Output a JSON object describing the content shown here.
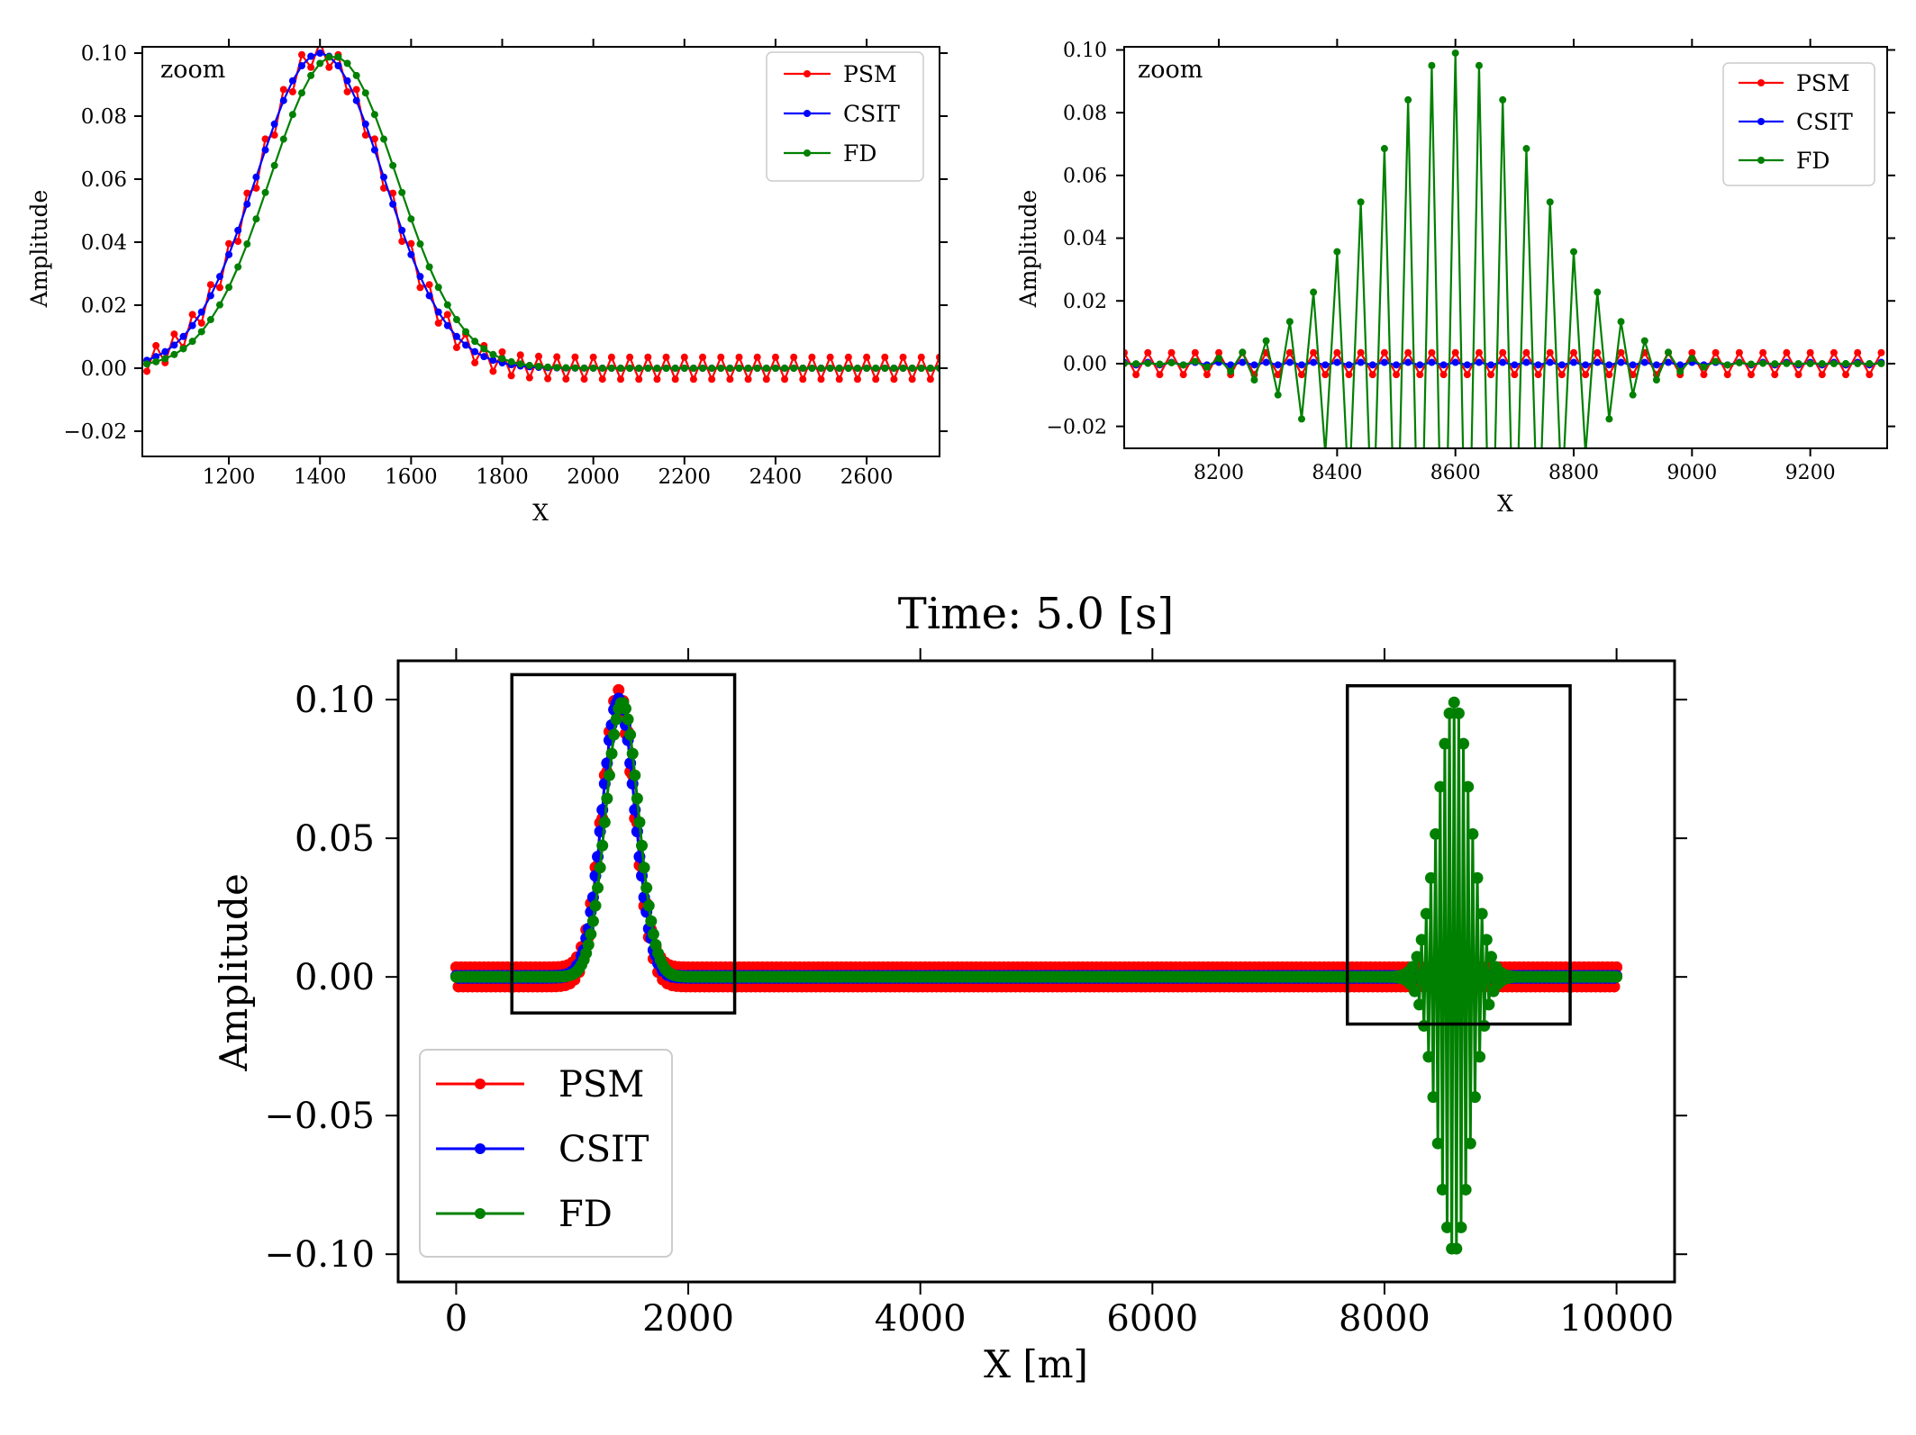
{
  "figure": {
    "series_names": [
      "PSM",
      "CSIT",
      "FD"
    ],
    "colors": {
      "PSM": "#ff0000",
      "CSIT": "#0000ff",
      "FD": "#008000",
      "axis": "#000000"
    }
  },
  "chart_data": [
    {
      "id": "zoom-left",
      "type": "line",
      "annotation": "zoom",
      "xlabel": "X",
      "ylabel": "Amplitude",
      "xlim": [
        1010,
        2760
      ],
      "ylim": [
        -0.028,
        0.102
      ],
      "xticks": [
        1200,
        1400,
        1600,
        1800,
        2000,
        2200,
        2400,
        2600
      ],
      "yticks": [
        -0.02,
        0.0,
        0.02,
        0.04,
        0.06,
        0.08,
        0.1
      ],
      "ytick_labels": [
        "−0.02",
        "0.00",
        "0.02",
        "0.04",
        "0.06",
        "0.08",
        "0.10"
      ],
      "legend": [
        "PSM",
        "CSIT",
        "FD"
      ],
      "series": [
        {
          "name": "PSM",
          "model": "gaussian",
          "center": 1400,
          "sigma": 140,
          "amplitude": 0.1,
          "oscillation": 0.0035,
          "step": 20
        },
        {
          "name": "CSIT",
          "model": "gaussian",
          "center": 1400,
          "sigma": 140,
          "amplitude": 0.1,
          "oscillation": 0.0,
          "step": 20
        },
        {
          "name": "FD",
          "model": "gaussian",
          "center": 1430,
          "sigma": 140,
          "amplitude": 0.099,
          "oscillation": 0.0,
          "step": 20
        }
      ]
    },
    {
      "id": "zoom-right",
      "type": "line",
      "annotation": "zoom",
      "xlabel": "X",
      "ylabel": "Amplitude",
      "xlim": [
        8040,
        9330
      ],
      "ylim": [
        -0.027,
        0.101
      ],
      "xticks": [
        8200,
        8400,
        8600,
        8800,
        9000,
        9200
      ],
      "yticks": [
        -0.02,
        0.0,
        0.02,
        0.04,
        0.06,
        0.08,
        0.1
      ],
      "ytick_labels": [
        "−0.02",
        "0.00",
        "0.02",
        "0.04",
        "0.06",
        "0.08",
        "0.10"
      ],
      "legend": [
        "PSM",
        "CSIT",
        "FD"
      ],
      "series": [
        {
          "name": "PSM",
          "model": "flat",
          "oscillation": 0.0035,
          "step": 20
        },
        {
          "name": "CSIT",
          "model": "flat",
          "oscillation": 0.0004,
          "step": 20
        },
        {
          "name": "FD",
          "model": "alternating-gaussian",
          "center": 8600,
          "sigma": 140,
          "amplitude": 0.099,
          "step": 20
        }
      ]
    },
    {
      "id": "main",
      "type": "line",
      "title": "Time: 5.0 [s]",
      "xlabel": "X [m]",
      "ylabel": "Amplitude",
      "xlim": [
        -500,
        10500
      ],
      "ylim": [
        -0.11,
        0.114
      ],
      "xticks": [
        0,
        2000,
        4000,
        6000,
        8000,
        10000
      ],
      "yticks": [
        -0.1,
        -0.05,
        0.0,
        0.05,
        0.1
      ],
      "ytick_labels": [
        "−0.10",
        "−0.05",
        "0.00",
        "0.05",
        "0.10"
      ],
      "legend": [
        "PSM",
        "CSIT",
        "FD"
      ],
      "zoom_boxes": [
        {
          "x": [
            480,
            2400
          ],
          "y": [
            -0.013,
            0.109
          ]
        },
        {
          "x": [
            7680,
            9600
          ],
          "y": [
            -0.017,
            0.105
          ]
        }
      ],
      "series": [
        {
          "name": "PSM",
          "model": "gaussian",
          "center": 1400,
          "sigma": 140,
          "amplitude": 0.1,
          "oscillation": 0.0035,
          "step": 20,
          "range": [
            0,
            10000
          ]
        },
        {
          "name": "CSIT",
          "model": "gaussian",
          "center": 1400,
          "sigma": 140,
          "amplitude": 0.1,
          "oscillation": 0.0004,
          "step": 20,
          "range": [
            0,
            10000
          ]
        },
        {
          "name": "FD",
          "model": "gaussian+alternating",
          "center": 1430,
          "sigma": 140,
          "amplitude": 0.099,
          "center2": 8600,
          "sigma2": 140,
          "amplitude2": 0.099,
          "step": 20,
          "range": [
            0,
            10000
          ]
        }
      ]
    }
  ]
}
